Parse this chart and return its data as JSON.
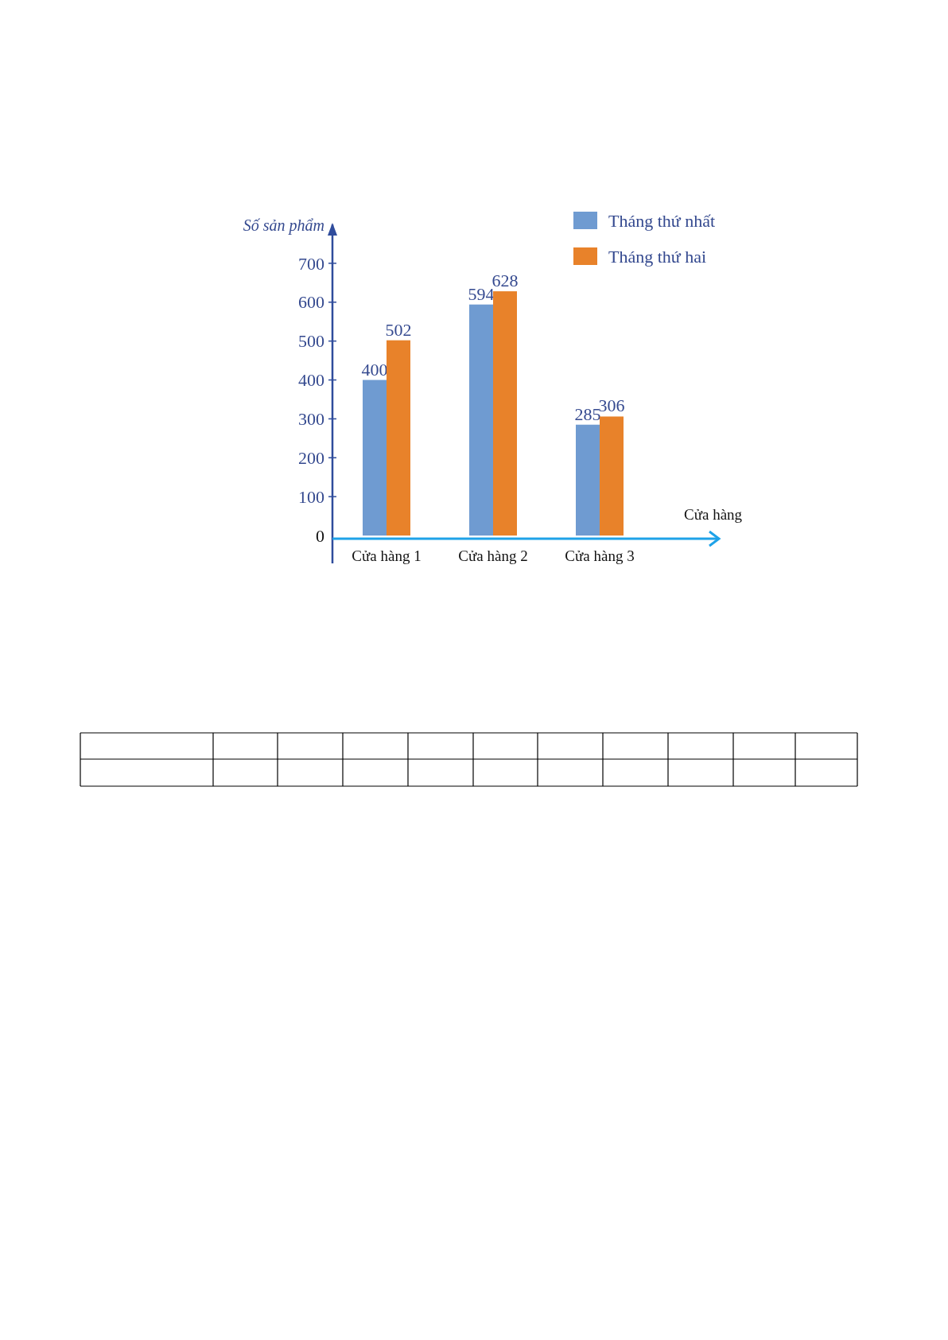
{
  "chart_data": {
    "type": "bar",
    "categories": [
      "Cửa hàng 1",
      "Cửa hàng 2",
      "Cửa hàng 3"
    ],
    "series": [
      {
        "name": "Tháng thứ nhất",
        "color": "#6f9bd1",
        "values": [
          400,
          594,
          285
        ]
      },
      {
        "name": "Tháng thứ hai",
        "color": "#e8822a",
        "values": [
          502,
          628,
          306
        ]
      }
    ],
    "ylabel": "Số sản phẩm",
    "xlabel": "Cửa hàng",
    "ylim": [
      0,
      800
    ],
    "yticks": [
      0,
      100,
      200,
      300,
      400,
      500,
      600,
      700
    ],
    "data_labels": true,
    "legend": "top right",
    "grid": false
  }
}
